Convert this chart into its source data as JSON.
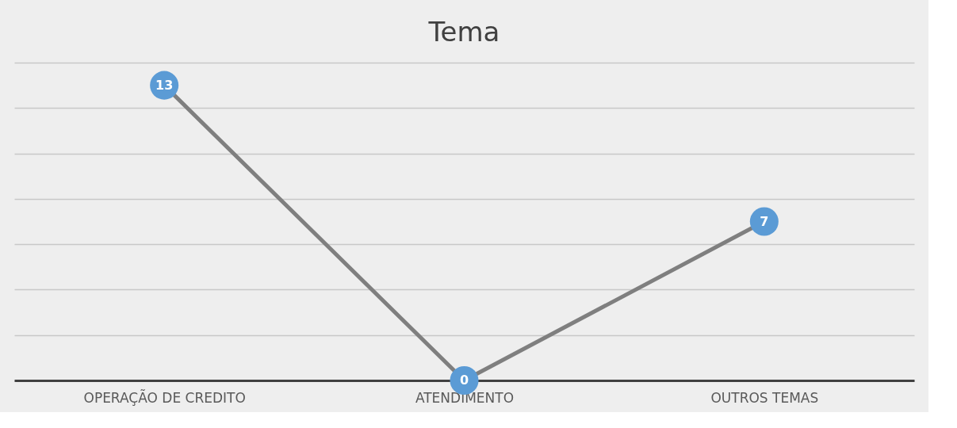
{
  "chart_data": {
    "type": "line",
    "title": "Tema",
    "categories": [
      "OPERAÇÃO DE CREDITO",
      "ATENDIMENTO",
      "OUTROS TEMAS"
    ],
    "series": [
      {
        "color": "#7f7f7f",
        "colors": [
          "#5b9bd5",
          "#5b9bd5",
          "#5b9bd5"
        ],
        "values": [
          13,
          0,
          7
        ]
      }
    ],
    "marker": "circle",
    "line_style": "solid",
    "ylim": [
      0,
      14
    ],
    "yticks": [
      {
        "value": 0,
        "label": null
      },
      {
        "value": 2,
        "label": null
      },
      {
        "value": 4,
        "label": null
      },
      {
        "value": 6,
        "label": null
      },
      {
        "value": 8,
        "label": null
      },
      {
        "value": 10,
        "label": null
      },
      {
        "value": 12,
        "label": null
      },
      {
        "value": 14,
        "label": null
      }
    ],
    "grid": "y",
    "tick_labels": "x",
    "data_labels": true
  }
}
